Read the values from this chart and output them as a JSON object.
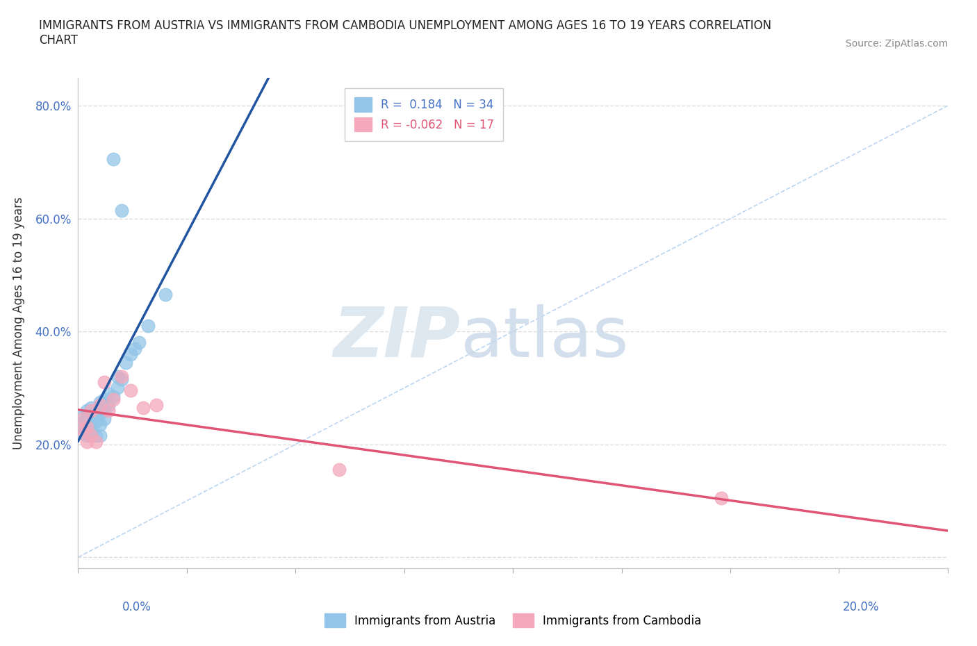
{
  "title": "IMMIGRANTS FROM AUSTRIA VS IMMIGRANTS FROM CAMBODIA UNEMPLOYMENT AMONG AGES 16 TO 19 YEARS CORRELATION\nCHART",
  "source": "Source: ZipAtlas.com",
  "ylabel": "Unemployment Among Ages 16 to 19 years",
  "austria_R": 0.184,
  "austria_N": 34,
  "cambodia_R": -0.062,
  "cambodia_N": 17,
  "austria_color": "#92C5E8",
  "cambodia_color": "#F4A8BB",
  "austria_line_color": "#2255a0",
  "cambodia_line_color": "#e05575",
  "diagonal_color": "#aaccee",
  "xlim": [
    0.0,
    0.2
  ],
  "ylim": [
    -0.02,
    0.85
  ],
  "ytick_positions": [
    0.0,
    0.2,
    0.4,
    0.6,
    0.8
  ],
  "ytick_labels": [
    "",
    "20.0%",
    "40.0%",
    "60.0%",
    "80.0%"
  ],
  "austria_x": [
    0.001,
    0.001,
    0.001,
    0.002,
    0.002,
    0.002,
    0.002,
    0.003,
    0.003,
    0.003,
    0.004,
    0.004,
    0.004,
    0.005,
    0.005,
    0.005,
    0.005,
    0.006,
    0.006,
    0.006,
    0.007,
    0.007,
    0.008,
    0.008,
    0.009,
    0.009,
    0.01,
    0.01,
    0.011,
    0.012,
    0.013,
    0.014,
    0.016,
    0.02
  ],
  "austria_y": [
    0.22,
    0.235,
    0.25,
    0.215,
    0.23,
    0.245,
    0.26,
    0.22,
    0.24,
    0.265,
    0.215,
    0.24,
    0.255,
    0.215,
    0.235,
    0.255,
    0.275,
    0.245,
    0.26,
    0.28,
    0.27,
    0.29,
    0.285,
    0.705,
    0.3,
    0.32,
    0.315,
    0.615,
    0.345,
    0.36,
    0.37,
    0.38,
    0.41,
    0.465
  ],
  "cambodia_x": [
    0.001,
    0.001,
    0.002,
    0.002,
    0.003,
    0.003,
    0.004,
    0.005,
    0.006,
    0.007,
    0.008,
    0.01,
    0.012,
    0.015,
    0.018,
    0.06,
    0.148
  ],
  "cambodia_y": [
    0.225,
    0.245,
    0.205,
    0.23,
    0.215,
    0.26,
    0.205,
    0.27,
    0.31,
    0.26,
    0.28,
    0.32,
    0.295,
    0.265,
    0.27,
    0.155,
    0.105
  ]
}
